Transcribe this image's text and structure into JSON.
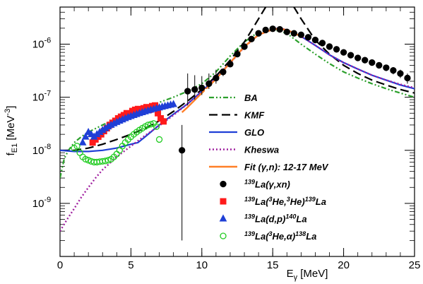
{
  "chart_data": {
    "type": "scatter",
    "title": "",
    "xlabel": "E",
    "xlabel_sub": "γ",
    "xlabel_unit": " [MeV]",
    "ylabel": "f",
    "ylabel_sub": "E1",
    "ylabel_unit_a": " [MeV",
    "ylabel_unit_sup": "-3",
    "ylabel_unit_b": "]",
    "xlim": [
      0,
      25
    ],
    "ylim": [
      1e-10,
      5e-06
    ],
    "y_scale": "log",
    "x_ticks": [
      "0",
      "5",
      "10",
      "15",
      "20",
      "25"
    ],
    "y_ticks": [
      {
        "value": 1e-09,
        "base": "10",
        "exp": "-9"
      },
      {
        "value": 1e-08,
        "base": "10",
        "exp": "-8"
      },
      {
        "value": 1e-07,
        "base": "10",
        "exp": "-7"
      },
      {
        "value": 1e-06,
        "base": "10",
        "exp": "-6"
      }
    ],
    "legend_position": "lower-right",
    "lines": [
      {
        "name": "BA",
        "color": "#2ca02c",
        "dash": "7,3,2,3,2,3",
        "width": 2.2,
        "x": [
          0,
          0.3,
          0.6,
          1,
          1.5,
          2,
          3,
          4,
          5,
          6,
          7,
          8,
          9,
          10,
          11,
          12,
          13,
          14,
          15,
          16,
          17,
          18,
          19,
          20,
          21,
          22,
          23,
          24,
          25
        ],
        "y": [
          3e-09,
          7e-09,
          1e-08,
          1.4e-08,
          1.8e-08,
          2.2e-08,
          3e-08,
          4e-08,
          5.2e-08,
          6.5e-08,
          8e-08,
          1e-07,
          1.3e-07,
          1.8e-07,
          3e-07,
          6e-07,
          1.1e-06,
          1.7e-06,
          1.9e-06,
          1.6e-06,
          1e-06,
          6.5e-07,
          4.3e-07,
          3e-07,
          2.3e-07,
          1.8e-07,
          1.45e-07,
          1.2e-07,
          1e-07
        ]
      },
      {
        "name": "KMF",
        "color": "#000000",
        "dash": "12,6",
        "width": 2.2,
        "x": [
          0,
          1,
          2,
          3,
          4,
          5,
          6,
          7,
          8,
          9,
          10,
          11,
          12,
          13,
          13.5,
          14,
          14.5,
          15,
          16,
          16.5,
          17,
          18,
          19,
          20,
          21,
          22,
          23,
          24,
          25
        ],
        "y": [
          1e-08,
          1e-08,
          1.1e-08,
          1.3e-08,
          1.6e-08,
          2e-08,
          2.6e-08,
          3.6e-08,
          5.4e-08,
          8.5e-08,
          1.4e-07,
          2.5e-07,
          5e-07,
          1.1e-06,
          1.8e-06,
          3e-06,
          5e-06,
          6e-06,
          6e-06,
          5e-06,
          3e-06,
          1.2e-06,
          6.5e-07,
          4e-07,
          2.8e-07,
          2.1e-07,
          1.7e-07,
          1.4e-07,
          1.2e-07
        ]
      },
      {
        "name": "GLO",
        "color": "#1f3fd6",
        "dash": "",
        "width": 2.2,
        "x": [
          0,
          1,
          2,
          3,
          4,
          5,
          5.5,
          6,
          7,
          8,
          9,
          10,
          11,
          12,
          13,
          14,
          15,
          15.5,
          16,
          17,
          18,
          19,
          20,
          21,
          22,
          23,
          24,
          25
        ],
        "y": [
          1e-08,
          9.5e-09,
          9.5e-09,
          1e-08,
          1.1e-08,
          1.3e-08,
          1.4e-08,
          1.8e-08,
          3e-08,
          4.8e-08,
          7.5e-08,
          1.3e-07,
          2.3e-07,
          4.5e-07,
          9e-07,
          1.5e-06,
          1.9e-06,
          2e-06,
          1.85e-06,
          1.4e-06,
          9.5e-07,
          6.3e-07,
          4.5e-07,
          3.4e-07,
          2.6e-07,
          2.1e-07,
          1.7e-07,
          1.45e-07
        ]
      },
      {
        "name": "Kheswa",
        "color": "#a020a0",
        "dash": "2,3",
        "width": 2.4,
        "x": [
          0,
          0.5,
          1,
          1.5,
          2,
          2.5,
          3,
          4,
          5,
          6,
          7,
          8,
          9,
          10,
          11,
          12,
          13,
          14,
          15,
          15.5,
          16,
          17,
          18,
          19,
          20,
          21,
          22,
          23,
          24,
          25
        ],
        "y": [
          3e-10,
          5e-10,
          8e-10,
          1.3e-09,
          2e-09,
          3e-09,
          4.3e-09,
          7.5e-09,
          1.2e-08,
          1.9e-08,
          2.9e-08,
          4.6e-08,
          7.5e-08,
          1.3e-07,
          2.3e-07,
          4.4e-07,
          8.8e-07,
          1.5e-06,
          1.9e-06,
          2e-06,
          1.85e-06,
          1.4e-06,
          9.5e-07,
          6.3e-07,
          4.5e-07,
          3.4e-07,
          2.6e-07,
          2.1e-07,
          1.75e-07,
          1.5e-07
        ]
      },
      {
        "name": "Fit (γ,n): 12-17 MeV",
        "color": "#ff7f27",
        "dash": "",
        "width": 2.4,
        "x": [
          8.6,
          9,
          10,
          11,
          12,
          13,
          14,
          15,
          15.5,
          16,
          17
        ],
        "y": [
          5.2e-08,
          6.5e-08,
          1.2e-07,
          2.2e-07,
          4.5e-07,
          9e-07,
          1.5e-06,
          1.9e-06,
          1.95e-06,
          1.85e-06,
          1.4e-06
        ]
      }
    ],
    "markers": [
      {
        "name_pre": "139",
        "name_a": "La(γ,xn)",
        "iso_b": "",
        "name_b": "",
        "color": "#000000",
        "shape": "circle",
        "filled": true,
        "x": [
          8.6,
          9,
          9.5,
          10,
          10.5,
          11,
          11.5,
          12,
          12.5,
          13,
          13.5,
          14,
          14.5,
          15,
          15.5,
          16,
          16.5,
          17,
          17.5,
          18,
          18.5,
          19,
          19.5,
          20,
          20.5,
          21,
          21.5,
          22,
          22.5,
          23,
          23.5,
          24,
          24.5
        ],
        "y": [
          1e-08,
          1.3e-07,
          1.4e-07,
          1.5e-07,
          1.8e-07,
          2.3e-07,
          3e-07,
          4.2e-07,
          6.5e-07,
          9e-07,
          1.25e-06,
          1.6e-06,
          1.85e-06,
          1.95e-06,
          1.9e-06,
          1.7e-06,
          1.6e-06,
          1.5e-06,
          1.35e-06,
          1.2e-06,
          1.05e-06,
          9e-07,
          8e-07,
          7e-07,
          6.2e-07,
          5.5e-07,
          5e-07,
          4.5e-07,
          4e-07,
          3.6e-07,
          3.2e-07,
          2.8e-07,
          2.3e-07
        ],
        "yerr_lo": [
          9.8e-09,
          6e-08,
          5e-08,
          4e-08,
          5e-08,
          5e-08,
          5e-08,
          5e-08,
          5e-08,
          5e-08,
          5e-08,
          5e-08,
          5e-08,
          5e-08,
          5e-08,
          5e-08,
          5e-08,
          5e-08,
          5e-08,
          5e-08,
          5e-08,
          5e-08,
          5e-08,
          5e-08,
          5e-08,
          5e-08,
          5e-08,
          5e-08,
          5e-08,
          5e-08,
          5e-08,
          5e-08,
          5e-08
        ],
        "yerr_hi": [
          2e-08,
          1.5e-07,
          1.2e-07,
          1e-07,
          1e-07,
          1e-07,
          5e-08,
          5e-08,
          5e-08,
          5e-08,
          5e-08,
          5e-08,
          5e-08,
          5e-08,
          5e-08,
          5e-08,
          5e-08,
          5e-08,
          5e-08,
          5e-08,
          5e-08,
          5e-08,
          5e-08,
          5e-08,
          5e-08,
          5e-08,
          5e-08,
          5e-08,
          5e-08,
          5e-08,
          5e-08,
          5e-08,
          5e-08
        ]
      },
      {
        "name_pre": "139",
        "name_a": "La(",
        "iso_b": "3",
        "name_b": "He,",
        "iso_c": "3",
        "name_c": "He)",
        "iso_d": "139",
        "name_d": "La",
        "color": "#ff1a1a",
        "shape": "square",
        "filled": true,
        "x": [
          2.3,
          2.5,
          2.7,
          2.9,
          3.1,
          3.3,
          3.5,
          3.7,
          3.9,
          4.1,
          4.3,
          4.5,
          4.7,
          4.9,
          5.1,
          5.3,
          5.5,
          5.7,
          5.9,
          6.1,
          6.3,
          6.5,
          6.7,
          6.9,
          7.1,
          7.3
        ],
        "y": [
          1.4e-08,
          1.6e-08,
          1.8e-08,
          2e-08,
          2.3e-08,
          2.6e-08,
          3e-08,
          3.3e-08,
          3.6e-08,
          4e-08,
          4.3e-08,
          4.6e-08,
          5e-08,
          4.5e-08,
          5.5e-08,
          5.8e-08,
          6e-08,
          5.7e-08,
          6.2e-08,
          6.5e-08,
          5.8e-08,
          6.8e-08,
          7e-08,
          5e-08,
          4e-08,
          3.5e-08
        ]
      },
      {
        "name_pre": "139",
        "name_a": "La(d,p)",
        "iso_b": "140",
        "name_b": "La",
        "color": "#1f3fd6",
        "shape": "triangle",
        "filled": true,
        "x": [
          1.6,
          1.8,
          2.0,
          2.2,
          2.4,
          2.6,
          2.8,
          3.0,
          3.2,
          3.4,
          3.6,
          3.8,
          4.0,
          4.2,
          4.4,
          4.6,
          4.8,
          5.0,
          5.2,
          5.4,
          5.6,
          5.8,
          6.0,
          6.2,
          6.4,
          6.6,
          6.8,
          7.0,
          7.2,
          7.4,
          7.6,
          7.8,
          8.0
        ],
        "y": [
          1.4e-08,
          1.8e-08,
          2.2e-08,
          2e-08,
          1.8e-08,
          2e-08,
          2.2e-08,
          2.4e-08,
          2.6e-08,
          2.8e-08,
          3e-08,
          3.2e-08,
          3.4e-08,
          3.6e-08,
          3.8e-08,
          4e-08,
          4.2e-08,
          4.4e-08,
          4.6e-08,
          4.8e-08,
          5e-08,
          5.2e-08,
          5.4e-08,
          5.6e-08,
          5.8e-08,
          6e-08,
          6.2e-08,
          6.4e-08,
          6.6e-08,
          6.8e-08,
          7e-08,
          7.2e-08,
          7.4e-08
        ]
      },
      {
        "name_pre": "139",
        "name_a": "La(",
        "iso_b": "3",
        "name_b": "He,α)",
        "iso_c": "138",
        "name_c": "La",
        "color": "#22cc22",
        "shape": "circle",
        "filled": false,
        "x": [
          1.0,
          1.2,
          1.4,
          1.6,
          1.8,
          2.0,
          2.2,
          2.4,
          2.6,
          2.8,
          3.0,
          3.2,
          3.4,
          3.6,
          3.8,
          4.0,
          4.2,
          4.4,
          4.6,
          4.8,
          5.0,
          5.2,
          5.4,
          5.6,
          5.8,
          6.0,
          6.2,
          6.4,
          6.6,
          6.8,
          7.0
        ],
        "y": [
          1.1e-08,
          1.2e-08,
          9e-09,
          7.5e-09,
          6.8e-09,
          6.5e-09,
          6.2e-09,
          6e-09,
          6e-09,
          6.1e-09,
          6.2e-09,
          6.3e-09,
          6.5e-09,
          6.8e-09,
          7.5e-09,
          8.5e-09,
          1e-08,
          1.2e-08,
          1.4e-08,
          1.6e-08,
          1.8e-08,
          2e-08,
          2.2e-08,
          2.4e-08,
          2.6e-08,
          2.8e-08,
          3e-08,
          3.1e-08,
          3.2e-08,
          2.8e-08,
          1.6e-08
        ]
      }
    ],
    "legend": [
      {
        "label": "BA",
        "kind": "line",
        "ref": 0
      },
      {
        "label": "KMF",
        "kind": "line",
        "ref": 1
      },
      {
        "label": "GLO",
        "kind": "line",
        "ref": 2
      },
      {
        "label": "Kheswa",
        "kind": "line",
        "ref": 3
      },
      {
        "label": "Fit (γ,n): 12-17 MeV",
        "kind": "line",
        "ref": 4
      },
      {
        "kind": "marker",
        "ref": 0
      },
      {
        "kind": "marker",
        "ref": 1
      },
      {
        "kind": "marker",
        "ref": 2
      },
      {
        "kind": "marker",
        "ref": 3
      }
    ]
  }
}
